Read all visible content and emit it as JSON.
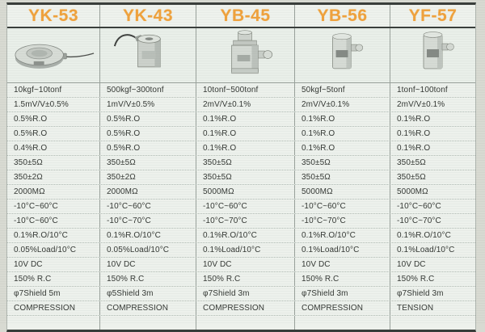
{
  "table": {
    "accent_color": "#f0a23c",
    "background_color": "#edf1ec",
    "border_color": "#383d3a",
    "columns": [
      {
        "model": "YK-53",
        "product_image": "ring-type-load-cell-with-cable",
        "specs": [
          "10kgf~10tonf",
          "1.5mV/V±0.5%",
          "0.5%R.O",
          "0.5%R.O",
          "0.4%R.O",
          "350±5Ω",
          "350±2Ω",
          "2000MΩ",
          "-10°C~60°C",
          "-10°C~60°C",
          "0.1%R.O/10°C",
          "0.05%Load/10°C",
          "10V DC",
          "150% R.C",
          "φ7Shield 5m",
          "COMPRESSION"
        ]
      },
      {
        "model": "YK-43",
        "product_image": "cylinder-load-cell-with-top-cable",
        "specs": [
          "500kgf~300tonf",
          "1mV/V±0.5%",
          "0.5%R.O",
          "0.5%R.O",
          "0.5%R.O",
          "350±5Ω",
          "350±2Ω",
          "2000MΩ",
          "-10°C~60°C",
          "-10°C~70°C",
          "0.1%R.O/10°C",
          "0.05%Load/10°C",
          "10V DC",
          "150% R.C",
          "φ5Shield 3m",
          "COMPRESSION"
        ]
      },
      {
        "model": "YB-45",
        "product_image": "column-type-load-cell-with-side-connector",
        "specs": [
          "10tonf~500tonf",
          "2mV/V±0.1%",
          "0.1%R.O",
          "0.1%R.O",
          "0.1%R.O",
          "350±5Ω",
          "350±5Ω",
          "5000MΩ",
          "-10°C~60°C",
          "-10°C~70°C",
          "0.1%R.O/10°C",
          "0.1%Load/10°C",
          "10V DC",
          "150% R.C",
          "φ7Shield 3m",
          "COMPRESSION"
        ]
      },
      {
        "model": "YB-56",
        "product_image": "canister-load-cell-with-side-connector",
        "specs": [
          "50kgf~5tonf",
          "2mV/V±0.1%",
          "0.1%R.O",
          "0.1%R.O",
          "0.1%R.O",
          "350±5Ω",
          "350±5Ω",
          "5000MΩ",
          "-10°C~60°C",
          "-10°C~70°C",
          "0.1%R.O/10°C",
          "0.1%Load/10°C",
          "10V DC",
          "150% R.C",
          "φ7Shield 3m",
          "COMPRESSION"
        ]
      },
      {
        "model": "YF-57",
        "product_image": "canister-load-cell-with-side-connector",
        "specs": [
          "1tonf~100tonf",
          "2mV/V±0.1%",
          "0.1%R.O",
          "0.1%R.O",
          "0.1%R.O",
          "350±5Ω",
          "350±5Ω",
          "5000MΩ",
          "-10°C~60°C",
          "-10°C~70°C",
          "0.1%R.O/10°C",
          "0.1%Load/10°C",
          "10V DC",
          "150% R.C",
          "φ7Shield 3m",
          "TENSION"
        ]
      }
    ],
    "empty_trailing_row": ""
  }
}
